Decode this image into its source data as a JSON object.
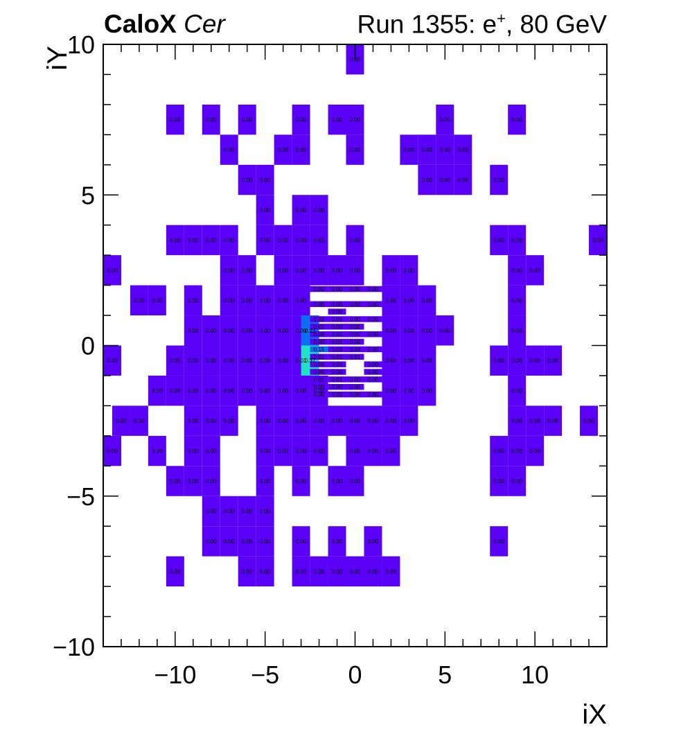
{
  "header": {
    "experiment": "CaloX",
    "channel": "Cer",
    "run_prefix": "Run 1355: e",
    "run_charge": "+",
    "run_suffix": ", 80 GeV"
  },
  "colors": {
    "low": "#5b00f6",
    "mid": "#0a6ff0",
    "high": "#21e0c8",
    "frame": "#000000",
    "background": "#ffffff"
  },
  "chart_data": {
    "type": "heatmap",
    "xlabel": "iX",
    "ylabel": "iY",
    "xlim": [
      -14,
      14
    ],
    "ylim": [
      -10,
      10
    ],
    "xticks": [
      -10,
      -5,
      0,
      5,
      10
    ],
    "yticks": [
      -10,
      -5,
      0,
      5,
      10
    ],
    "xtick_labels": [
      "−10",
      "−5",
      "0",
      "5",
      "10"
    ],
    "ytick_labels": [
      "−10",
      "−5",
      "0",
      "5",
      "10"
    ],
    "value_format": "0.00",
    "cells": [
      {
        "x": 0,
        "y": 9.5,
        "v": 0.0
      },
      {
        "x": -10,
        "y": 7.5,
        "v": 0.0
      },
      {
        "x": -8,
        "y": 7.5,
        "v": 0.0
      },
      {
        "x": -6,
        "y": 7.5,
        "v": 0.0
      },
      {
        "x": -3,
        "y": 7.5,
        "v": 0.0
      },
      {
        "x": -1,
        "y": 7.5,
        "v": 0.0
      },
      {
        "x": 0,
        "y": 7.5,
        "v": 0.0
      },
      {
        "x": 5,
        "y": 7.5,
        "v": 0.0
      },
      {
        "x": 9,
        "y": 7.5,
        "v": 0.0
      },
      {
        "x": -7,
        "y": 6.5,
        "v": 0.0
      },
      {
        "x": -4,
        "y": 6.5,
        "v": 0.0
      },
      {
        "x": -3,
        "y": 6.5,
        "v": 0.0
      },
      {
        "x": 0,
        "y": 6.5,
        "v": 0.0
      },
      {
        "x": 3,
        "y": 6.5,
        "v": 0.0
      },
      {
        "x": 4,
        "y": 6.5,
        "v": 0.0
      },
      {
        "x": 5,
        "y": 6.5,
        "v": 0.0
      },
      {
        "x": 6,
        "y": 6.5,
        "v": 0.0
      },
      {
        "x": -6,
        "y": 5.5,
        "v": 0.0
      },
      {
        "x": -5,
        "y": 5.5,
        "v": 0.0
      },
      {
        "x": 4,
        "y": 5.5,
        "v": 0.0
      },
      {
        "x": 5,
        "y": 5.5,
        "v": 0.0
      },
      {
        "x": 6,
        "y": 5.5,
        "v": 0.0
      },
      {
        "x": 8,
        "y": 5.5,
        "v": 0.0
      },
      {
        "x": -5,
        "y": 4.5,
        "v": 0.0
      },
      {
        "x": -3,
        "y": 4.5,
        "v": 0.0
      },
      {
        "x": -2,
        "y": 4.5,
        "v": 0.0
      },
      {
        "x": -10,
        "y": 3.5,
        "v": 0.0
      },
      {
        "x": -9,
        "y": 3.5,
        "v": 0.0
      },
      {
        "x": -8,
        "y": 3.5,
        "v": 0.0
      },
      {
        "x": -7,
        "y": 3.5,
        "v": 0.0
      },
      {
        "x": -5,
        "y": 3.5,
        "v": 0.0
      },
      {
        "x": -4,
        "y": 3.5,
        "v": 0.0
      },
      {
        "x": -3,
        "y": 3.5,
        "v": 0.0
      },
      {
        "x": -2,
        "y": 3.5,
        "v": 0.0
      },
      {
        "x": 0,
        "y": 3.5,
        "v": 0.0
      },
      {
        "x": 8,
        "y": 3.5,
        "v": 0.0
      },
      {
        "x": 9,
        "y": 3.5,
        "v": 0.0
      },
      {
        "x": 13.5,
        "y": 3.5,
        "v": 0.0
      },
      {
        "x": -13.5,
        "y": 2.5,
        "v": 0.0
      },
      {
        "x": -7,
        "y": 2.5,
        "v": 0.0
      },
      {
        "x": -6,
        "y": 2.5,
        "v": 0.0
      },
      {
        "x": -4,
        "y": 2.5,
        "v": 0.0
      },
      {
        "x": -3,
        "y": 2.5,
        "v": 0.0
      },
      {
        "x": -2,
        "y": 2.5,
        "v": 0.0
      },
      {
        "x": -1,
        "y": 2.5,
        "v": 0.0
      },
      {
        "x": 0,
        "y": 2.5,
        "v": 0.0
      },
      {
        "x": 2,
        "y": 2.5,
        "v": 0.0
      },
      {
        "x": 3,
        "y": 2.5,
        "v": 0.0
      },
      {
        "x": 9,
        "y": 2.5,
        "v": 0.0
      },
      {
        "x": 10,
        "y": 2.5,
        "v": 0.0
      },
      {
        "x": -12,
        "y": 1.5,
        "v": 0.0
      },
      {
        "x": -11,
        "y": 1.5,
        "v": 0.0
      },
      {
        "x": -9,
        "y": 1.5,
        "v": 0.0
      },
      {
        "x": -7,
        "y": 1.5,
        "v": 0.0
      },
      {
        "x": -6,
        "y": 1.5,
        "v": 0.0
      },
      {
        "x": -5,
        "y": 1.5,
        "v": 0.0
      },
      {
        "x": -4,
        "y": 1.5,
        "v": 0.0
      },
      {
        "x": -3,
        "y": 1.5,
        "v": 0.0
      },
      {
        "x": 2,
        "y": 1.5,
        "v": 0.0
      },
      {
        "x": 3,
        "y": 1.5,
        "v": 0.0
      },
      {
        "x": 4,
        "y": 1.5,
        "v": 0.0
      },
      {
        "x": 9,
        "y": 1.5,
        "v": 0.0
      },
      {
        "x": -9,
        "y": 0.5,
        "v": 0.0
      },
      {
        "x": -8,
        "y": 0.5,
        "v": 0.0
      },
      {
        "x": -7,
        "y": 0.5,
        "v": 0.0
      },
      {
        "x": -6,
        "y": 0.5,
        "v": 0.0
      },
      {
        "x": -5,
        "y": 0.5,
        "v": 0.0
      },
      {
        "x": -4,
        "y": 0.5,
        "v": 0.0
      },
      {
        "x": -3,
        "y": 0.5,
        "v": 0.0
      },
      {
        "x": -2.5,
        "y": 0.5,
        "v": 0.23
      },
      {
        "x": 2,
        "y": 0.5,
        "v": 0.0
      },
      {
        "x": 3,
        "y": 0.5,
        "v": 0.0
      },
      {
        "x": 4,
        "y": 0.5,
        "v": 0.0
      },
      {
        "x": 5,
        "y": 0.5,
        "v": 0.0
      },
      {
        "x": 9,
        "y": 0.5,
        "v": 0.0
      },
      {
        "x": -13.5,
        "y": -0.5,
        "v": 0.0
      },
      {
        "x": -10,
        "y": -0.5,
        "v": 0.0
      },
      {
        "x": -9,
        "y": -0.5,
        "v": 0.0
      },
      {
        "x": -8,
        "y": -0.5,
        "v": 0.0
      },
      {
        "x": -7,
        "y": -0.5,
        "v": 0.0
      },
      {
        "x": -6,
        "y": -0.5,
        "v": 0.0
      },
      {
        "x": -5,
        "y": -0.5,
        "v": 0.0
      },
      {
        "x": -4,
        "y": -0.5,
        "v": 0.0
      },
      {
        "x": -3,
        "y": -0.5,
        "v": 0.01
      },
      {
        "x": -2.5,
        "y": -0.5,
        "v": 0.37
      },
      {
        "x": 2,
        "y": -0.5,
        "v": 0.0
      },
      {
        "x": 3,
        "y": -0.5,
        "v": 0.0
      },
      {
        "x": 4,
        "y": -0.5,
        "v": 0.0
      },
      {
        "x": 8,
        "y": -0.5,
        "v": 0.0
      },
      {
        "x": 9,
        "y": -0.5,
        "v": 0.0
      },
      {
        "x": 10,
        "y": -0.5,
        "v": 0.0
      },
      {
        "x": 11,
        "y": -0.5,
        "v": 0.0
      },
      {
        "x": -11,
        "y": -1.5,
        "v": 0.0
      },
      {
        "x": -10,
        "y": -1.5,
        "v": 0.0
      },
      {
        "x": -9,
        "y": -1.5,
        "v": 0.0
      },
      {
        "x": -8,
        "y": -1.5,
        "v": 0.0
      },
      {
        "x": -7,
        "y": -1.5,
        "v": 0.0
      },
      {
        "x": -6,
        "y": -1.5,
        "v": 0.0
      },
      {
        "x": -5,
        "y": -1.5,
        "v": 0.0
      },
      {
        "x": -4,
        "y": -1.5,
        "v": 0.0
      },
      {
        "x": -3,
        "y": -1.5,
        "v": 0.0
      },
      {
        "x": -2,
        "y": -1.5,
        "v": 0.02
      },
      {
        "x": 2,
        "y": -1.5,
        "v": 0.0
      },
      {
        "x": 3,
        "y": -1.5,
        "v": 0.0
      },
      {
        "x": 4,
        "y": -1.5,
        "v": 0.0
      },
      {
        "x": 9,
        "y": -1.5,
        "v": 0.0
      },
      {
        "x": -13,
        "y": -2.5,
        "v": 0.0
      },
      {
        "x": -12,
        "y": -2.5,
        "v": 0.0
      },
      {
        "x": -9,
        "y": -2.5,
        "v": 0.0
      },
      {
        "x": -8,
        "y": -2.5,
        "v": 0.0
      },
      {
        "x": -7,
        "y": -2.5,
        "v": 0.0
      },
      {
        "x": -5,
        "y": -2.5,
        "v": 0.0
      },
      {
        "x": -4,
        "y": -2.5,
        "v": 0.0
      },
      {
        "x": -3,
        "y": -2.5,
        "v": 0.0
      },
      {
        "x": -2,
        "y": -2.5,
        "v": 0.0
      },
      {
        "x": -1,
        "y": -2.5,
        "v": 0.0
      },
      {
        "x": 0,
        "y": -2.5,
        "v": 0.0
      },
      {
        "x": 1,
        "y": -2.5,
        "v": 0.0
      },
      {
        "x": 2,
        "y": -2.5,
        "v": 0.0
      },
      {
        "x": 3,
        "y": -2.5,
        "v": 0.0
      },
      {
        "x": 9,
        "y": -2.5,
        "v": 0.0
      },
      {
        "x": 10,
        "y": -2.5,
        "v": 0.0
      },
      {
        "x": 11,
        "y": -2.5,
        "v": 0.0
      },
      {
        "x": 13,
        "y": -2.5,
        "v": 0.0
      },
      {
        "x": -13.5,
        "y": -3.5,
        "v": 0.0
      },
      {
        "x": -11,
        "y": -3.5,
        "v": 0.0
      },
      {
        "x": -9,
        "y": -3.5,
        "v": 0.0
      },
      {
        "x": -8,
        "y": -3.5,
        "v": 0.0
      },
      {
        "x": -5,
        "y": -3.5,
        "v": 0.0
      },
      {
        "x": -4,
        "y": -3.5,
        "v": 0.0
      },
      {
        "x": -3,
        "y": -3.5,
        "v": 0.0
      },
      {
        "x": -2,
        "y": -3.5,
        "v": 0.0
      },
      {
        "x": 0,
        "y": -3.5,
        "v": 0.0
      },
      {
        "x": 1,
        "y": -3.5,
        "v": 0.0
      },
      {
        "x": 2,
        "y": -3.5,
        "v": 0.0
      },
      {
        "x": 8,
        "y": -3.5,
        "v": 0.0
      },
      {
        "x": 9,
        "y": -3.5,
        "v": 0.0
      },
      {
        "x": 10,
        "y": -3.5,
        "v": 0.0
      },
      {
        "x": -10,
        "y": -4.5,
        "v": 0.0
      },
      {
        "x": -9,
        "y": -4.5,
        "v": 0.0
      },
      {
        "x": -8,
        "y": -4.5,
        "v": 0.0
      },
      {
        "x": -5,
        "y": -4.5,
        "v": 0.0
      },
      {
        "x": -3,
        "y": -4.5,
        "v": 0.0
      },
      {
        "x": -1,
        "y": -4.5,
        "v": 0.0
      },
      {
        "x": 0,
        "y": -4.5,
        "v": 0.0
      },
      {
        "x": 8,
        "y": -4.5,
        "v": 0.0
      },
      {
        "x": 9,
        "y": -4.5,
        "v": 0.0
      },
      {
        "x": -8,
        "y": -5.5,
        "v": 0.0
      },
      {
        "x": -7,
        "y": -5.5,
        "v": 0.0
      },
      {
        "x": -6,
        "y": -5.5,
        "v": 0.0
      },
      {
        "x": -5,
        "y": -5.5,
        "v": 0.0
      },
      {
        "x": -8,
        "y": -6.5,
        "v": 0.0
      },
      {
        "x": -7,
        "y": -6.5,
        "v": 0.0
      },
      {
        "x": -6,
        "y": -6.5,
        "v": 0.0
      },
      {
        "x": -5,
        "y": -6.5,
        "v": 0.0
      },
      {
        "x": -3,
        "y": -6.5,
        "v": 0.0
      },
      {
        "x": -1,
        "y": -6.5,
        "v": 0.0
      },
      {
        "x": 1,
        "y": -6.5,
        "v": 0.0
      },
      {
        "x": 8,
        "y": -6.5,
        "v": 0.0
      },
      {
        "x": -10,
        "y": -7.5,
        "v": 0.0
      },
      {
        "x": -6,
        "y": -7.5,
        "v": 0.0
      },
      {
        "x": -5,
        "y": -7.5,
        "v": 0.0
      },
      {
        "x": -3,
        "y": -7.5,
        "v": 0.0
      },
      {
        "x": -2,
        "y": -7.5,
        "v": 0.0
      },
      {
        "x": -1,
        "y": -7.5,
        "v": 0.0
      },
      {
        "x": 0,
        "y": -7.5,
        "v": 0.0
      },
      {
        "x": 1,
        "y": -7.5,
        "v": 0.0
      },
      {
        "x": 2,
        "y": -7.5,
        "v": 0.0
      }
    ],
    "fine_grid": {
      "cell_width": 1,
      "cell_height": 0.25,
      "x": [
        -2,
        -1,
        0,
        1
      ],
      "rows": [
        {
          "y": 1.875,
          "v": [
            0.0,
            0.0,
            0.0,
            0.0
          ]
        },
        {
          "y": 1.375,
          "v": [
            0.0,
            0.0,
            0.0,
            0.0
          ]
        },
        {
          "y": 1.125,
          "v": [
            null,
            0.0,
            null,
            null
          ]
        },
        {
          "y": 0.875,
          "v": [
            0.02,
            0.01,
            0.0,
            0.0
          ]
        },
        {
          "y": 0.625,
          "v": [
            0.01,
            0.0,
            0.0,
            null
          ]
        },
        {
          "y": 0.375,
          "v": [
            0.09,
            0.01,
            0.02,
            0.0
          ]
        },
        {
          "y": 0.125,
          "v": [
            0.0,
            0.01,
            0.0,
            null
          ]
        },
        {
          "y": -0.125,
          "v": [
            0.15,
            0.03,
            0.03,
            0.0
          ]
        },
        {
          "y": -0.375,
          "v": [
            0.01,
            0.01,
            0.01,
            null
          ]
        },
        {
          "y": -0.625,
          "v": [
            0.09,
            0.03,
            null,
            0.0
          ]
        },
        {
          "y": -0.875,
          "v": [
            0.0,
            0.0,
            null,
            0.0
          ]
        },
        {
          "y": -1.125,
          "v": [
            0.01,
            0.01,
            0.0,
            0.0
          ]
        },
        {
          "y": -1.375,
          "v": [
            0.0,
            0.0,
            0.0,
            null
          ]
        },
        {
          "y": -1.625,
          "v": [
            0.0,
            0.0,
            0.0,
            0.0
          ]
        }
      ]
    }
  }
}
